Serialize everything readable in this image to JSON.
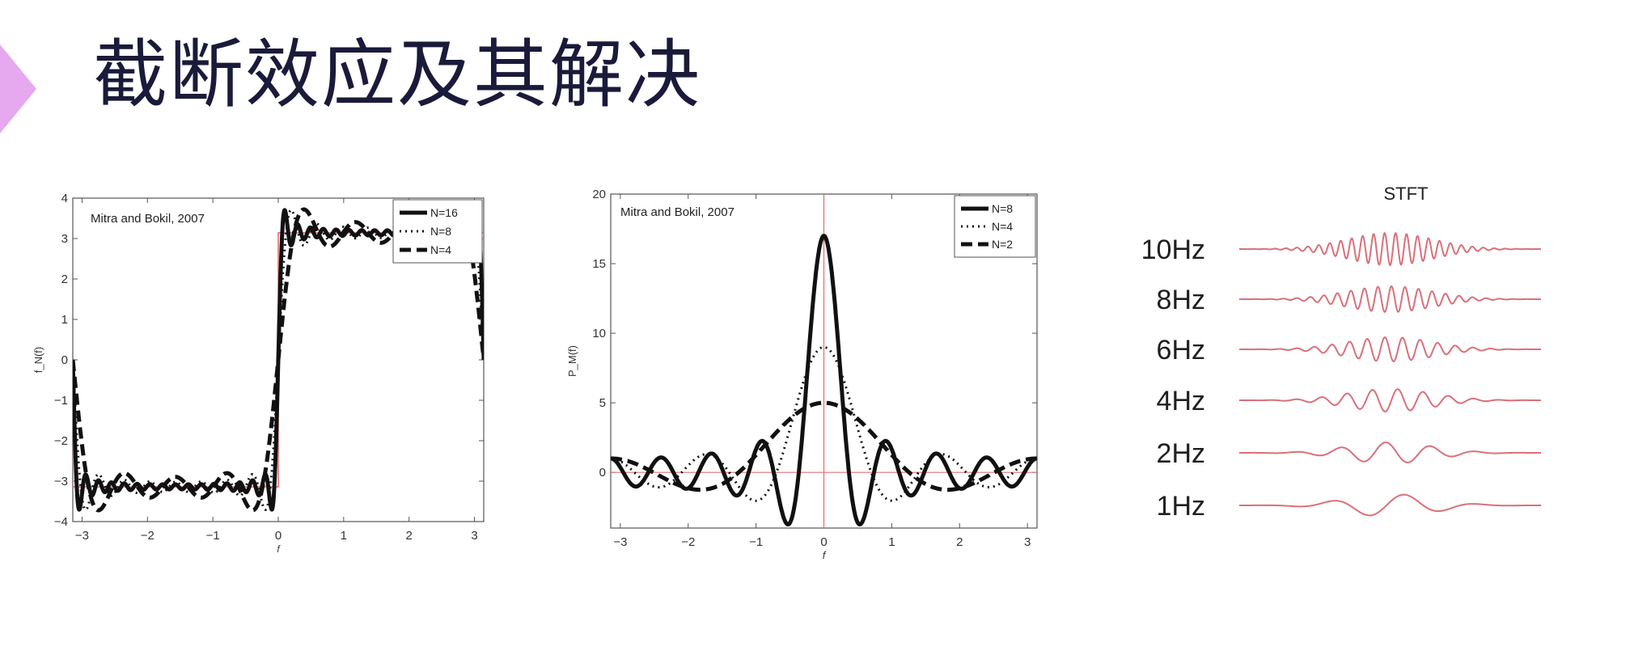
{
  "slide": {
    "title": "截断效应及其解决",
    "accent_color": "#e6a8ef",
    "title_color": "#1a1a3a"
  },
  "chart_data": [
    {
      "type": "line",
      "annotation": "Mitra and Bokil, 2007",
      "xlabel": "f",
      "ylabel": "f_N(f)",
      "xlim": [
        -3.14159,
        3.14159
      ],
      "ylim": [
        -4,
        4
      ],
      "xticks": [
        -3,
        -2,
        -1,
        0,
        1,
        2,
        3
      ],
      "yticks": [
        -4,
        -3,
        -2,
        -1,
        0,
        1,
        2,
        3,
        4
      ],
      "xtick_labels": [
        "−3",
        "−2",
        "−1",
        "0",
        "1",
        "2",
        "3"
      ],
      "ytick_labels": [
        "−4",
        "−3",
        "−2",
        "−1",
        "0",
        "1",
        "2",
        "3",
        "4"
      ],
      "reference": {
        "name": "square wave",
        "color": "#e07070",
        "low": -3.14159,
        "high": 3.14159
      },
      "legend": {
        "position": "top-right"
      },
      "series": [
        {
          "name": "N=16",
          "style": "solid",
          "N": 16
        },
        {
          "name": "N=8",
          "style": "dotted",
          "N": 8
        },
        {
          "name": "N=4",
          "style": "dashed",
          "N": 4
        }
      ]
    },
    {
      "type": "line",
      "annotation": "Mitra and Bokil, 2007",
      "xlabel": "f",
      "ylabel": "P_M(f)",
      "xlim": [
        -3.14159,
        3.14159
      ],
      "ylim": [
        -4,
        20
      ],
      "xticks": [
        -3,
        -2,
        -1,
        0,
        1,
        2,
        3
      ],
      "yticks": [
        0,
        5,
        10,
        15,
        20
      ],
      "xtick_labels": [
        "−3",
        "−2",
        "−1",
        "0",
        "1",
        "2",
        "3"
      ],
      "ytick_labels": [
        "0",
        "5",
        "10",
        "15",
        "20"
      ],
      "reference_color": "#e07070",
      "legend": {
        "position": "top-right"
      },
      "series": [
        {
          "name": "N=8",
          "style": "solid",
          "N": 8
        },
        {
          "name": "N=4",
          "style": "dotted",
          "N": 4
        },
        {
          "name": "N=2",
          "style": "dashed",
          "N": 2
        }
      ]
    },
    {
      "type": "line",
      "title": "STFT",
      "line_color": "#d9707a",
      "series": [
        {
          "name": "10Hz",
          "freq": 10
        },
        {
          "name": "8Hz",
          "freq": 8
        },
        {
          "name": "6Hz",
          "freq": 6
        },
        {
          "name": "4Hz",
          "freq": 4
        },
        {
          "name": "2Hz",
          "freq": 2
        },
        {
          "name": "1Hz",
          "freq": 1
        }
      ]
    }
  ]
}
